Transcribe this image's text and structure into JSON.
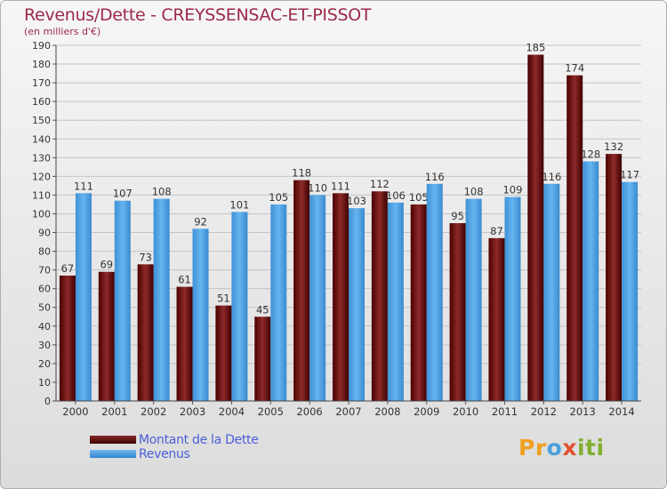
{
  "chart_data": {
    "type": "bar",
    "title": "Revenus/Dette - CREYSSENSAC-ET-PISSOT",
    "subtitle": "(en milliers d'€)",
    "categories": [
      "2000",
      "2001",
      "2002",
      "2003",
      "2004",
      "2005",
      "2006",
      "2007",
      "2008",
      "2009",
      "2010",
      "2011",
      "2012",
      "2013",
      "2014"
    ],
    "series": [
      {
        "name": "Montant de la Dette",
        "color": "#6e1414",
        "values": [
          67,
          69,
          73,
          61,
          51,
          45,
          118,
          111,
          112,
          105,
          95,
          87,
          185,
          174,
          132
        ]
      },
      {
        "name": "Revenus",
        "color": "#4a9de0",
        "values": [
          111,
          107,
          108,
          92,
          101,
          105,
          110,
          103,
          106,
          116,
          108,
          109,
          116,
          128,
          117
        ]
      }
    ],
    "ylim": [
      0,
      190
    ],
    "yticks": [
      0,
      10,
      20,
      30,
      40,
      50,
      60,
      70,
      80,
      90,
      100,
      110,
      120,
      130,
      140,
      150,
      160,
      170,
      180,
      190
    ],
    "grid": true,
    "legend_position": "bottom-left"
  },
  "logo": {
    "parts": [
      "Pr",
      "o",
      "x",
      "iti"
    ]
  }
}
